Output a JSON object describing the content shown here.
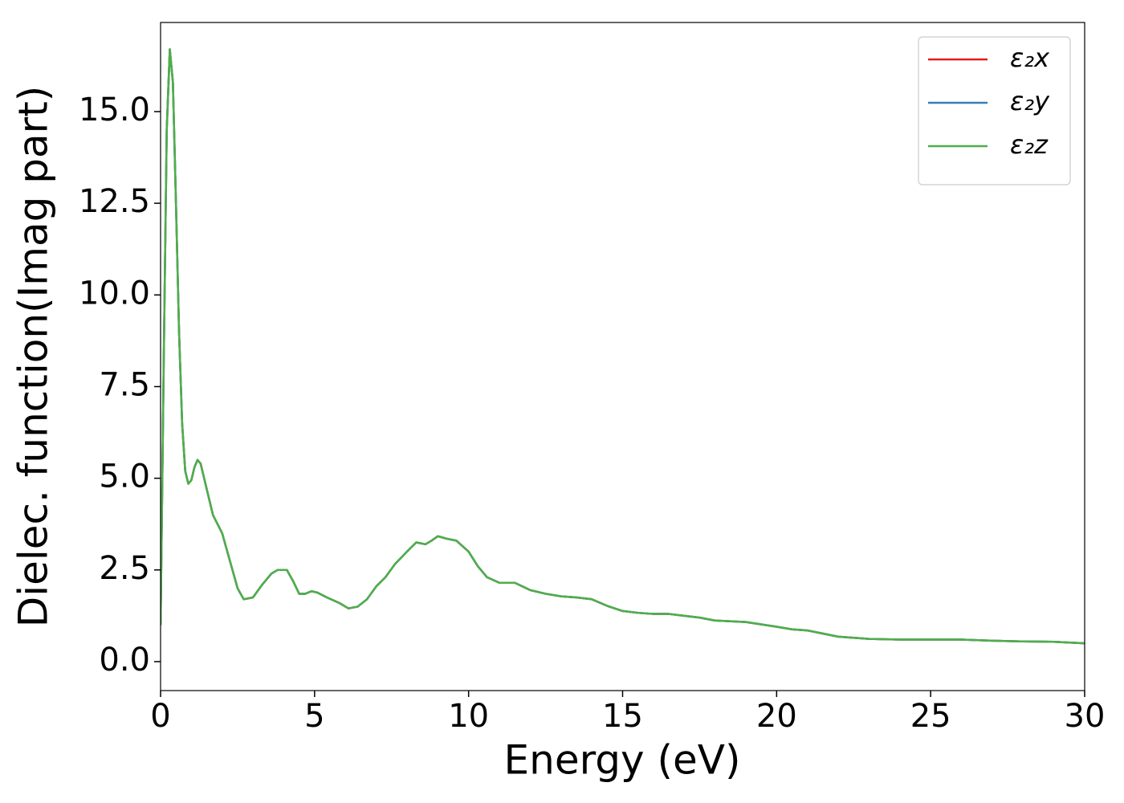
{
  "chart_data": {
    "type": "line",
    "xlabel": "Energy (eV)",
    "ylabel": "Dielec. function(Imag part)",
    "x": [
      0.0,
      0.1,
      0.2,
      0.3,
      0.4,
      0.5,
      0.6,
      0.7,
      0.8,
      0.9,
      1.0,
      1.1,
      1.2,
      1.3,
      1.5,
      1.7,
      2.0,
      2.3,
      2.5,
      2.7,
      3.0,
      3.3,
      3.6,
      3.8,
      4.1,
      4.3,
      4.5,
      4.7,
      4.9,
      5.1,
      5.4,
      5.8,
      6.1,
      6.4,
      6.7,
      7.0,
      7.3,
      7.6,
      8.0,
      8.3,
      8.6,
      8.8,
      9.0,
      9.3,
      9.6,
      10.0,
      10.3,
      10.6,
      11.0,
      11.5,
      12.0,
      12.5,
      13.0,
      13.5,
      14.0,
      14.5,
      15.0,
      15.5,
      16.0,
      16.5,
      17.0,
      17.5,
      18.0,
      19.0,
      20.0,
      20.5,
      21.0,
      22.0,
      23.0,
      24.0,
      25.0,
      26.0,
      27.0,
      28.0,
      29.0,
      30.0
    ],
    "series": [
      {
        "name": "ε₂x",
        "color": "#e41a1c",
        "values": [
          1.0,
          8.0,
          14.5,
          16.7,
          15.8,
          12.5,
          9.0,
          6.5,
          5.2,
          4.85,
          4.95,
          5.3,
          5.5,
          5.4,
          4.7,
          4.0,
          3.5,
          2.6,
          2.0,
          1.7,
          1.75,
          2.1,
          2.4,
          2.5,
          2.5,
          2.2,
          1.85,
          1.85,
          1.92,
          1.88,
          1.75,
          1.6,
          1.45,
          1.5,
          1.7,
          2.05,
          2.3,
          2.65,
          3.0,
          3.25,
          3.2,
          3.3,
          3.42,
          3.35,
          3.3,
          3.0,
          2.6,
          2.3,
          2.15,
          2.15,
          1.95,
          1.85,
          1.78,
          1.75,
          1.7,
          1.52,
          1.38,
          1.33,
          1.3,
          1.3,
          1.25,
          1.2,
          1.12,
          1.08,
          0.95,
          0.88,
          0.85,
          0.68,
          0.62,
          0.6,
          0.6,
          0.6,
          0.57,
          0.55,
          0.54,
          0.5
        ]
      },
      {
        "name": "ε₂y",
        "color": "#377eb8",
        "values": [
          1.0,
          8.0,
          14.5,
          16.7,
          15.8,
          12.5,
          9.0,
          6.5,
          5.2,
          4.85,
          4.95,
          5.3,
          5.5,
          5.4,
          4.7,
          4.0,
          3.5,
          2.6,
          2.0,
          1.7,
          1.75,
          2.1,
          2.4,
          2.5,
          2.5,
          2.2,
          1.85,
          1.85,
          1.92,
          1.88,
          1.75,
          1.6,
          1.45,
          1.5,
          1.7,
          2.05,
          2.3,
          2.65,
          3.0,
          3.25,
          3.2,
          3.3,
          3.42,
          3.35,
          3.3,
          3.0,
          2.6,
          2.3,
          2.15,
          2.15,
          1.95,
          1.85,
          1.78,
          1.75,
          1.7,
          1.52,
          1.38,
          1.33,
          1.3,
          1.3,
          1.25,
          1.2,
          1.12,
          1.08,
          0.95,
          0.88,
          0.85,
          0.68,
          0.62,
          0.6,
          0.6,
          0.6,
          0.57,
          0.55,
          0.54,
          0.5
        ]
      },
      {
        "name": "ε₂z",
        "color": "#4daf4a",
        "values": [
          1.0,
          8.0,
          14.5,
          16.7,
          15.8,
          12.5,
          9.0,
          6.5,
          5.2,
          4.85,
          4.95,
          5.3,
          5.5,
          5.4,
          4.7,
          4.0,
          3.5,
          2.6,
          2.0,
          1.7,
          1.75,
          2.1,
          2.4,
          2.5,
          2.5,
          2.2,
          1.85,
          1.85,
          1.92,
          1.88,
          1.75,
          1.6,
          1.45,
          1.5,
          1.7,
          2.05,
          2.3,
          2.65,
          3.0,
          3.25,
          3.2,
          3.3,
          3.42,
          3.35,
          3.3,
          3.0,
          2.6,
          2.3,
          2.15,
          2.15,
          1.95,
          1.85,
          1.78,
          1.75,
          1.7,
          1.52,
          1.38,
          1.33,
          1.3,
          1.3,
          1.25,
          1.2,
          1.12,
          1.08,
          0.95,
          0.88,
          0.85,
          0.68,
          0.62,
          0.6,
          0.6,
          0.6,
          0.57,
          0.55,
          0.54,
          0.5
        ]
      }
    ],
    "xlim": [
      0,
      30
    ],
    "xticks": [
      0,
      5,
      10,
      15,
      20,
      25,
      30
    ],
    "ylim": [
      -0.79,
      17.43
    ],
    "yticks": [
      {
        "value": 0,
        "label": "0.0"
      },
      2.5,
      {
        "value": 5,
        "label": "5.0"
      },
      7.5,
      {
        "value": 10,
        "label": "10.0"
      },
      12.5,
      {
        "value": 15,
        "label": "15.0"
      }
    ],
    "grid": false,
    "legend": "upper right"
  }
}
